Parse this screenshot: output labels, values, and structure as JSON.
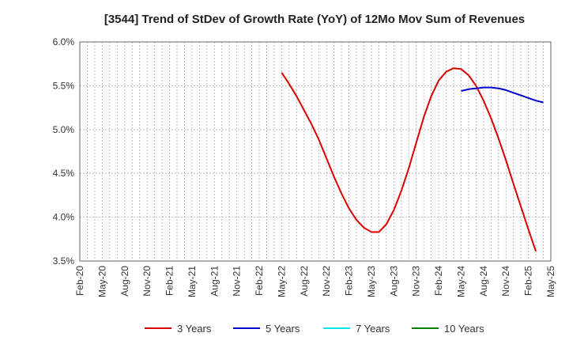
{
  "chart_data": {
    "type": "line",
    "title": "[3544]  Trend of StDev of Growth Rate (YoY) of 12Mo Mov Sum of Revenues",
    "xlabel": "",
    "ylabel": "",
    "ylim": [
      3.5,
      6.0
    ],
    "y_ticks": [
      3.5,
      4.0,
      4.5,
      5.0,
      5.5,
      6.0
    ],
    "y_tick_labels": [
      "3.5%",
      "4.0%",
      "4.5%",
      "5.0%",
      "5.5%",
      "6.0%"
    ],
    "x_tick_labels": [
      "Feb-20",
      "May-20",
      "Aug-20",
      "Nov-20",
      "Feb-21",
      "May-21",
      "Aug-21",
      "Nov-21",
      "Feb-22",
      "May-22",
      "Aug-22",
      "Nov-22",
      "Feb-23",
      "May-23",
      "Aug-23",
      "Nov-23",
      "Feb-24",
      "May-24",
      "Aug-24",
      "Nov-24",
      "Feb-25",
      "May-25"
    ],
    "x_start": "Feb-20",
    "month_count": 63,
    "grid": true,
    "series": [
      {
        "name": "3 Years",
        "color": "#dd0000",
        "start_month_index": 27,
        "values": [
          5.65,
          5.52,
          5.38,
          5.22,
          5.06,
          4.88,
          4.67,
          4.46,
          4.27,
          4.1,
          3.97,
          3.88,
          3.83,
          3.83,
          3.92,
          4.08,
          4.3,
          4.56,
          4.85,
          5.14,
          5.38,
          5.56,
          5.66,
          5.7,
          5.69,
          5.62,
          5.5,
          5.33,
          5.13,
          4.9,
          4.65,
          4.38,
          4.12,
          3.86,
          3.61
        ]
      },
      {
        "name": "5 Years",
        "color": "#0000cc",
        "start_month_index": 51,
        "values": [
          5.44,
          5.46,
          5.47,
          5.48,
          5.48,
          5.47,
          5.45,
          5.42,
          5.39,
          5.36,
          5.33,
          5.31
        ]
      },
      {
        "name": "7 Years",
        "color": "#00e5ee",
        "start_month_index": null,
        "values": []
      },
      {
        "name": "10 Years",
        "color": "#008000",
        "start_month_index": null,
        "values": []
      }
    ]
  }
}
